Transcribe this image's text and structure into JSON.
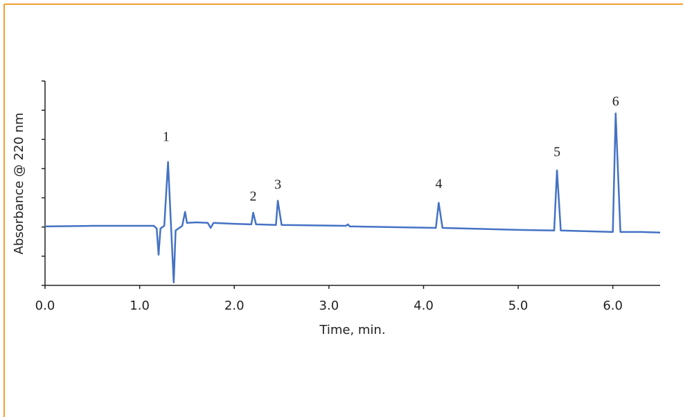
{
  "chart_data": {
    "type": "line",
    "x_label": "Time, min.",
    "y_label": "Absorbance @ 220 nm",
    "x": [
      0,
      0.5,
      1.0,
      1.15,
      1.18,
      1.2,
      1.22,
      1.26,
      1.3,
      1.33,
      1.36,
      1.38,
      1.45,
      1.48,
      1.5,
      1.6,
      1.72,
      1.75,
      1.78,
      2.0,
      2.18,
      2.2,
      2.23,
      2.44,
      2.46,
      2.5,
      3.18,
      3.2,
      3.22,
      4.13,
      4.16,
      4.2,
      5.0,
      5.38,
      5.41,
      5.45,
      6.0,
      6.03,
      6.08,
      6.3,
      6.5
    ],
    "values": [
      2.02,
      2.04,
      2.04,
      2.04,
      1.95,
      1.05,
      1.95,
      2.04,
      4.23,
      2.14,
      0.1,
      1.88,
      2.04,
      2.52,
      2.14,
      2.16,
      2.14,
      1.97,
      2.14,
      2.11,
      2.09,
      2.49,
      2.09,
      2.07,
      2.9,
      2.07,
      2.04,
      2.09,
      2.02,
      1.97,
      2.83,
      1.97,
      1.9,
      1.88,
      3.94,
      1.88,
      1.83,
      5.89,
      1.83,
      1.83,
      1.81
    ],
    "color": "#4472c4",
    "xlim": [
      0,
      6.5
    ],
    "xticks": [
      {
        "value": 0,
        "label": "0.0"
      },
      {
        "value": 1,
        "label": "1.0"
      },
      {
        "value": 2,
        "label": "2.0"
      },
      {
        "value": 3,
        "label": "3.0"
      },
      {
        "value": 4,
        "label": "4.0"
      },
      {
        "value": 5,
        "label": "5.0"
      },
      {
        "value": 6,
        "label": "6.0"
      }
    ],
    "ylim": [
      0,
      7
    ],
    "yticks": [
      0,
      1,
      2,
      3,
      4,
      5,
      6,
      7
    ],
    "annotations": [
      {
        "text": "1",
        "x": 1.28,
        "y": 5.06
      },
      {
        "text": "2",
        "x": 2.2,
        "y": 3.02
      },
      {
        "text": "3",
        "x": 2.46,
        "y": 3.42
      },
      {
        "text": "4",
        "x": 4.16,
        "y": 3.44
      },
      {
        "text": "5",
        "x": 5.41,
        "y": 4.54
      },
      {
        "text": "6",
        "x": 6.03,
        "y": 6.27
      }
    ]
  }
}
